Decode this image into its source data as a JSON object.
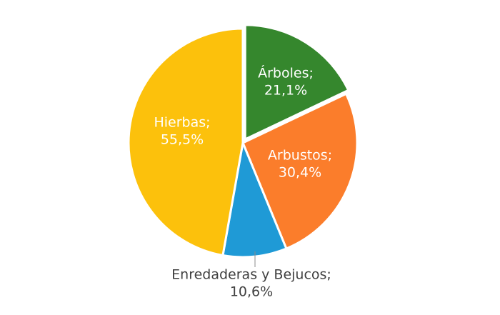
{
  "chart_data": {
    "type": "pie",
    "categories": [
      "Árboles;",
      "Arbustos;",
      "Enredaderas y Bejucos;",
      "Hierbas;"
    ],
    "values": [
      21.1,
      30.4,
      10.6,
      55.5
    ],
    "value_labels": [
      "21,1%",
      "30,4%",
      "10,6%",
      "55,5%"
    ],
    "colors": [
      "#35872d",
      "#fb7d2b",
      "#1f9ad6",
      "#fcc10c"
    ],
    "label_colors": [
      "#ffffff",
      "#ffffff",
      "#404040",
      "#ffffff"
    ]
  }
}
